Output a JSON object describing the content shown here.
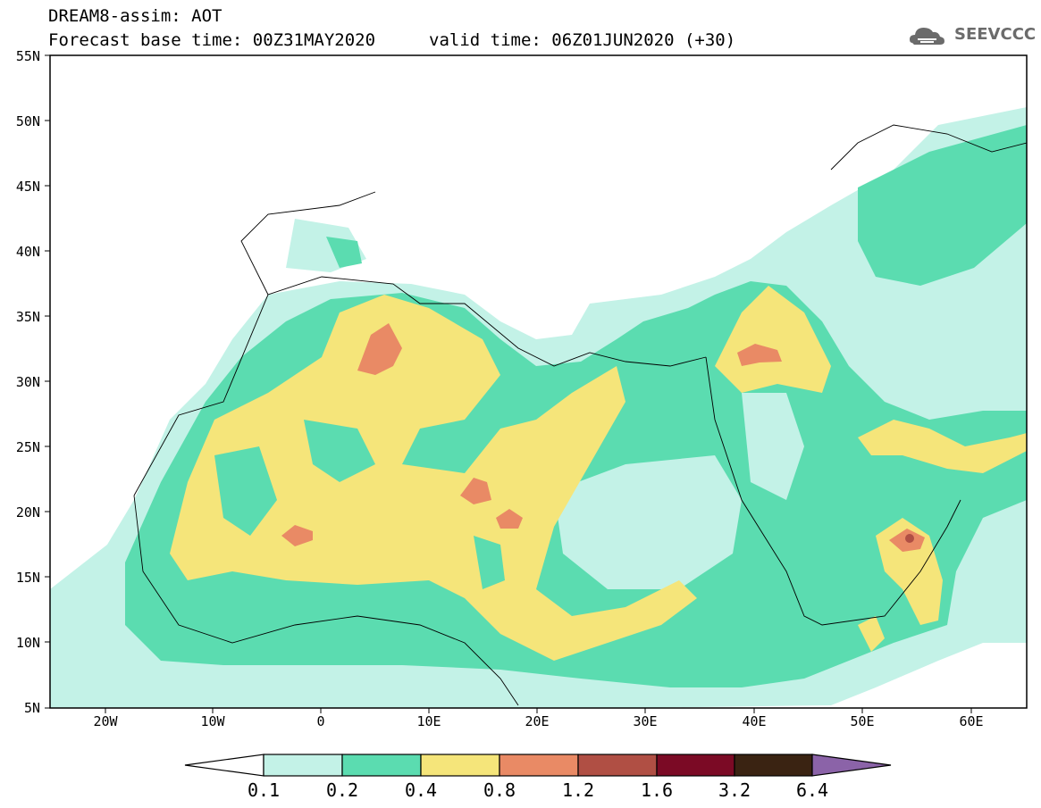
{
  "title": {
    "line1": "DREAM8-assim: AOT",
    "line2": "Forecast base time: 00Z31MAY2020",
    "valid": "valid time: 06Z01JUN2020 (+30)"
  },
  "logo": {
    "text": "SEEVCCC",
    "icon": "cloud-icon"
  },
  "map": {
    "lat_labels": [
      "55N",
      "50N",
      "45N",
      "40N",
      "35N",
      "30N",
      "25N",
      "20N",
      "15N",
      "10N",
      "5N"
    ],
    "lon_labels": [
      "20W",
      "10W",
      "0",
      "10E",
      "20E",
      "30E",
      "40E",
      "50E",
      "60E"
    ]
  },
  "colorbar": {
    "labels": [
      "0.1",
      "0.2",
      "0.4",
      "0.8",
      "1.2",
      "1.6",
      "3.2",
      "6.4"
    ],
    "colors": [
      "#c3f2e7",
      "#5bdcb0",
      "#f5e57a",
      "#e98a65",
      "#b04f44",
      "#7b0a25",
      "#3a2312",
      "#8b63a8"
    ]
  }
}
